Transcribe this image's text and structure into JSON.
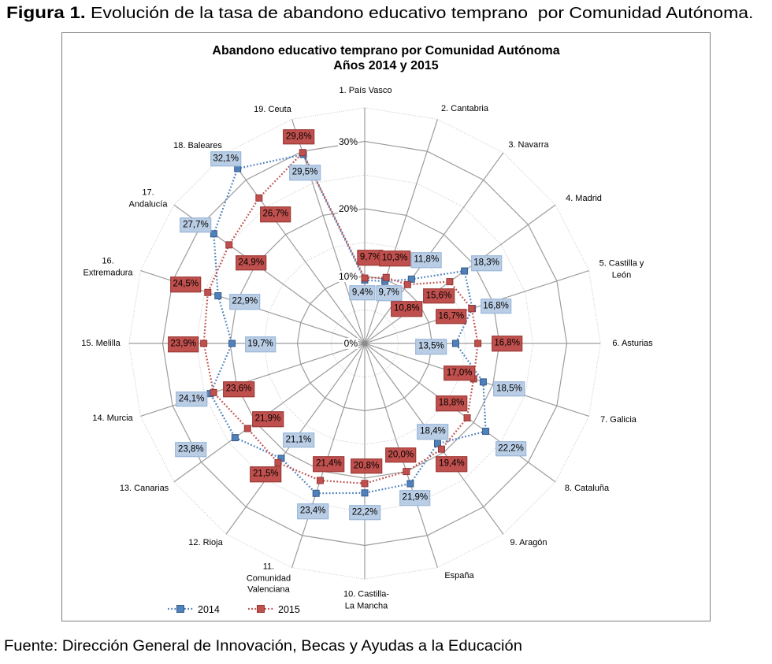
{
  "figure": {
    "label": "Figura 1.",
    "caption": " Evolución de la tasa de abandono educativo temprano  por Comunidad Autónoma.",
    "source": "Fuente: Dirección General de Innovación, Becas y Ayudas a la Educación"
  },
  "chart_data": {
    "type": "radar",
    "title": "Abandono educativo temprano por Comunidad Autónoma",
    "subtitle": "Años 2014 y 2015",
    "axis": {
      "min": 0,
      "max": 35,
      "major_unit": 10,
      "minor_unit": 5,
      "ticks": [
        {
          "value": 0,
          "label": "0%"
        },
        {
          "value": 10,
          "label": "10%"
        },
        {
          "value": 20,
          "label": "20%"
        },
        {
          "value": 30,
          "label": "30%"
        }
      ]
    },
    "grid": true,
    "legend_position": "bottom-left",
    "categories": [
      "1. País Vasco",
      "2. Cantabria",
      "3. Navarra",
      "4. Madrid",
      "5. Castilla y\nLeón",
      "6. Asturias",
      "7. Galicia",
      "8. Cataluña",
      "9. Aragón",
      "España",
      "10. Castilla-\nLa Mancha",
      "11.\nComunidad\nValenciana",
      "12. Rioja",
      "13. Canarias",
      "14. Murcia",
      "15. Melilla",
      "16.\nExtremadura",
      "17.\nAndalucía",
      "18. Baleares",
      "19. Ceuta"
    ],
    "series": [
      {
        "name": "2014",
        "color": "#4F81BD",
        "marker_border": "#385D8A",
        "label_fill": "#B9CDE5",
        "label_border": "#95B3D7",
        "values": [
          9.4,
          9.7,
          11.8,
          18.3,
          16.8,
          13.5,
          18.5,
          22.2,
          18.4,
          21.9,
          22.2,
          23.4,
          21.1,
          23.8,
          24.1,
          19.7,
          22.9,
          27.7,
          32.1,
          29.5
        ]
      },
      {
        "name": "2015",
        "color": "#C0504D",
        "marker_border": "#953735",
        "label_fill": "#C0504D",
        "label_border": "#953735",
        "values": [
          9.7,
          10.3,
          10.8,
          15.6,
          16.7,
          16.8,
          17.0,
          18.8,
          19.4,
          20.0,
          20.8,
          21.4,
          21.9,
          21.5,
          23.6,
          23.9,
          24.5,
          24.9,
          26.7,
          29.8
        ]
      }
    ]
  }
}
